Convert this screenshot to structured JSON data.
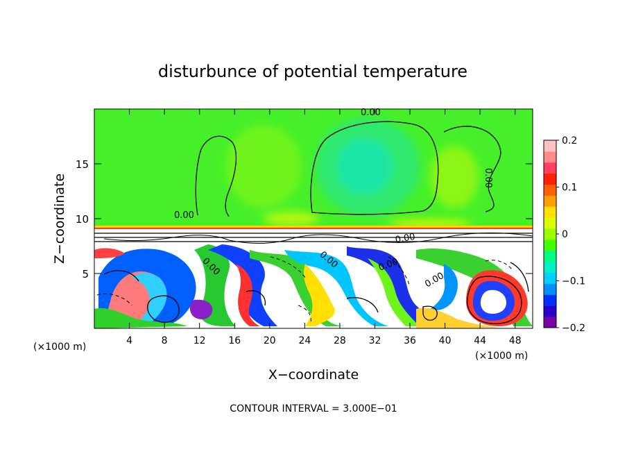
{
  "chart_data": {
    "type": "heatmap",
    "title": "disturbunce of potential temperature",
    "xlabel": "X−coordinate",
    "ylabel": "Z−coordinate",
    "x_unit": "(×1000 m)",
    "x_unit_right": "(×1000 m)",
    "xlim": [
      0,
      50
    ],
    "ylim": [
      0,
      20
    ],
    "x_ticks": [
      "4",
      "8",
      "12",
      "16",
      "20",
      "24",
      "28",
      "32",
      "36",
      "40",
      "44",
      "48"
    ],
    "y_ticks": [
      "5",
      "10",
      "15"
    ],
    "colorbar": {
      "range": [
        -0.2,
        0.2
      ],
      "tick_labels": [
        "0.2",
        "0.1",
        "0",
        "−0.1",
        "−0.2"
      ],
      "colors": [
        "#7b00a8",
        "#2800c8",
        "#0030ff",
        "#0090ff",
        "#00d0ff",
        "#00f0c8",
        "#00ff80",
        "#40ff00",
        "#9cff00",
        "#d8ff00",
        "#ffe000",
        "#ffa000",
        "#ff6000",
        "#ff2000",
        "#ff4060",
        "#ff8a8a",
        "#ffc0c0"
      ]
    },
    "contour_labels": [
      "0.00",
      "0.00",
      "0.00",
      "0.00",
      "0.00",
      "0.00",
      "0.00",
      "0.00"
    ],
    "contour_interval_text": "CONTOUR INTERVAL = 3.000E−01"
  }
}
